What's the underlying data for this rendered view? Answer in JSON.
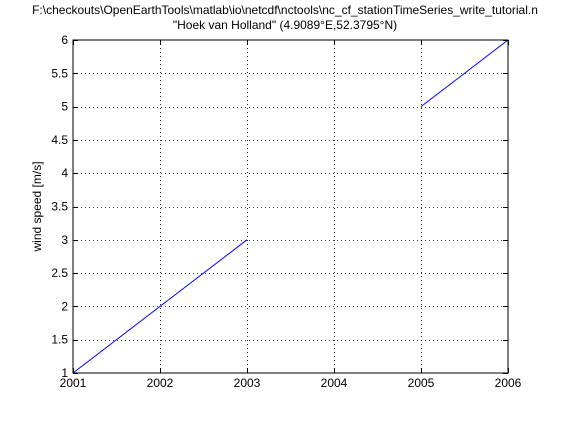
{
  "chart_data": {
    "type": "line",
    "title_line1": "F:\\checkouts\\OpenEarthTools\\matlab\\io\\netcdf\\nctools\\nc_cf_stationTimeSeries_write_tutorial.n",
    "title_line2": "\"Hoek van Holland\" (4.9089°E,52.3795°N)",
    "xlabel": "",
    "ylabel": "wind speed  [m/s]",
    "xlim": [
      2001,
      2006
    ],
    "ylim": [
      1,
      6
    ],
    "x_ticks": [
      2001,
      2002,
      2003,
      2004,
      2005,
      2006
    ],
    "y_ticks": [
      1,
      1.5,
      2,
      2.5,
      3,
      3.5,
      4,
      4.5,
      5,
      5.5,
      6
    ],
    "x_tick_labels": [
      "2001",
      "2002",
      "2003",
      "2004",
      "2005",
      "2006"
    ],
    "y_tick_labels": [
      "1",
      "1.5",
      "2",
      "2.5",
      "3",
      "3.5",
      "4",
      "4.5",
      "5",
      "5.5",
      "6"
    ],
    "grid": true,
    "grid_style": "dotted",
    "series": [
      {
        "color": "#0000ff",
        "segments": [
          {
            "x": [
              2001,
              2002,
              2003
            ],
            "y": [
              1,
              2,
              3
            ]
          },
          {
            "x": [
              2005,
              2006
            ],
            "y": [
              5,
              6
            ]
          }
        ]
      }
    ]
  }
}
